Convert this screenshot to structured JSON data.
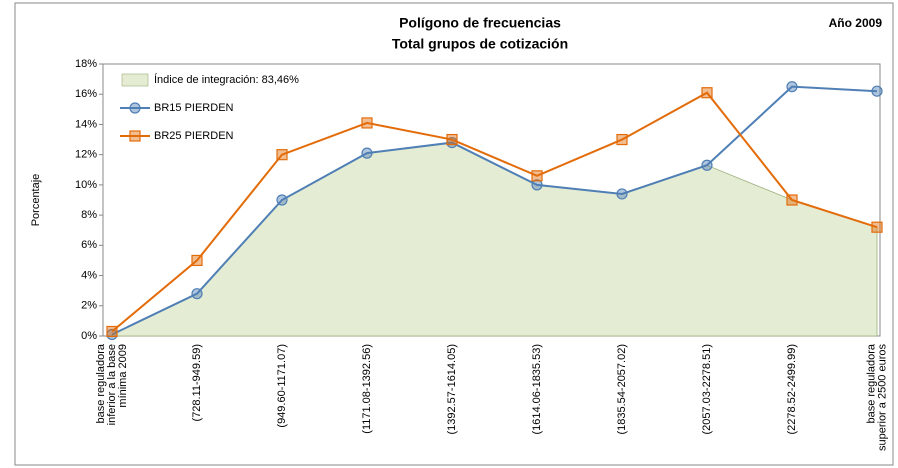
{
  "chart_data": {
    "type": "line",
    "title": "Polígono de frecuencias",
    "subtitle": "Total grupos de cotización",
    "annotation": "Año 2009",
    "ylabel": "Porcentaje",
    "categories": [
      [
        "base reguladora",
        "inferior a la base",
        "mínima 2009"
      ],
      [
        "(728.11-949.59)"
      ],
      [
        "(949.60-1171.07)"
      ],
      [
        "(1171.08-1392.56)"
      ],
      [
        "(1392.57-1614.05)"
      ],
      [
        "(1614.06-1835.53)"
      ],
      [
        "(1835.54-2057.02)"
      ],
      [
        "(2057.03-2278.51)"
      ],
      [
        "(2278.52-2499.99)"
      ],
      [
        "base reguladora",
        "superior a 2500 euros"
      ]
    ],
    "series": [
      {
        "name": "Índice de integración: 83,46%",
        "type": "area",
        "color": "#e4ecd4",
        "stroke": "#9bb07a",
        "values": [
          0.1,
          2.8,
          9.0,
          12.1,
          12.8,
          10.0,
          9.4,
          11.3,
          9.0,
          7.2
        ]
      },
      {
        "name": "BR15 PIERDEN",
        "type": "line",
        "marker": "circle",
        "color": "#4f7fb5",
        "values": [
          0.1,
          2.8,
          9.0,
          12.1,
          12.8,
          10.0,
          9.4,
          11.3,
          16.5,
          16.2
        ]
      },
      {
        "name": "BR25 PIERDEN",
        "type": "line",
        "marker": "square",
        "color": "#e36c0a",
        "values": [
          0.3,
          5.0,
          12.0,
          14.1,
          13.0,
          10.6,
          13.0,
          16.1,
          9.0,
          7.2
        ]
      }
    ],
    "ylim": [
      0,
      18
    ],
    "yticks": [
      {
        "value": 0,
        "label": "0%"
      },
      {
        "value": 2,
        "label": "2%"
      },
      {
        "value": 4,
        "label": "4%"
      },
      {
        "value": 6,
        "label": "6%"
      },
      {
        "value": 8,
        "label": "8%"
      },
      {
        "value": 10,
        "label": "10%"
      },
      {
        "value": 12,
        "label": "12%"
      },
      {
        "value": 14,
        "label": "14%"
      },
      {
        "value": 16,
        "label": "16%"
      },
      {
        "value": 18,
        "label": "18%"
      }
    ],
    "legend": "top-left"
  }
}
